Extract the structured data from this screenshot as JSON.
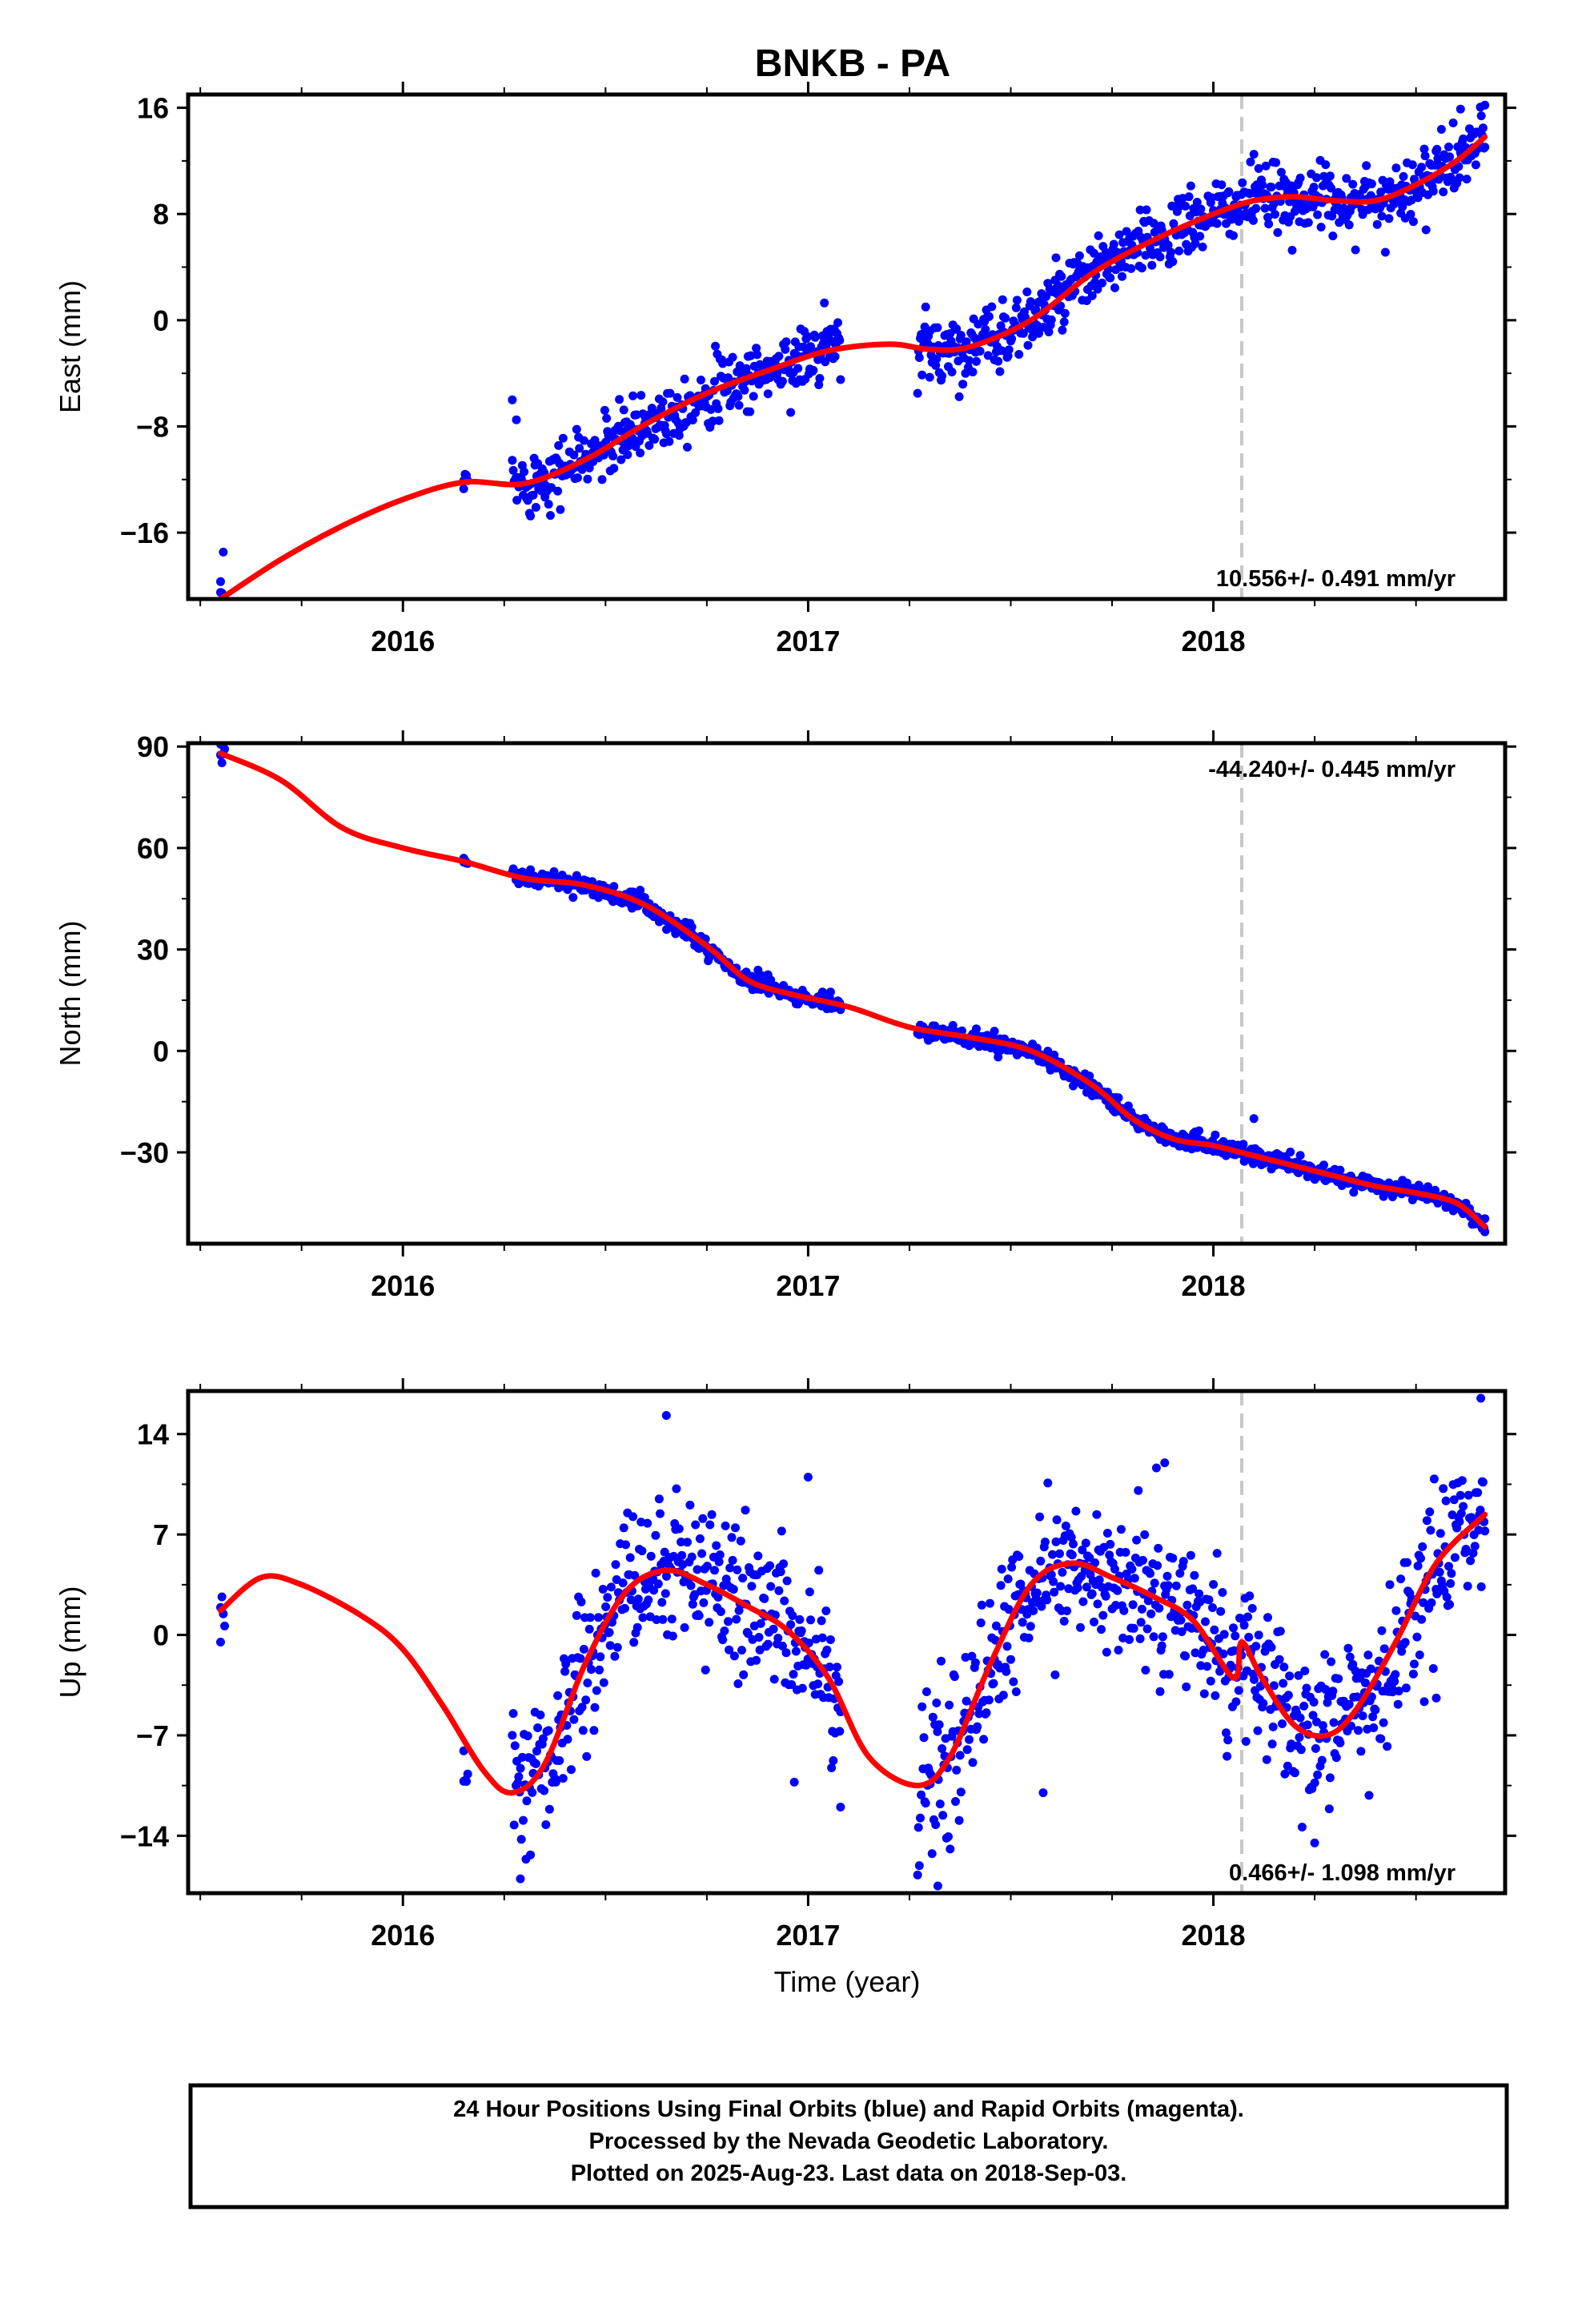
{
  "title": "BNKB - PA",
  "x_axis_label": "Time (year)",
  "footer": {
    "lines": [
      "24 Hour Positions Using Final Orbits (blue) and Rapid Orbits (magenta).",
      "Processed by the Nevada Geodetic Laboratory.",
      "Plotted on 2025-Aug-23. Last data on 2018-Sep-03."
    ]
  },
  "colors": {
    "data_points": "#0000ff",
    "fit_curve": "#ff0000",
    "marker_line": "#c8c8c8",
    "frame": "#000000"
  },
  "chart_data": [
    {
      "type": "scatter",
      "component": "east",
      "ylabel": "East (mm)",
      "rate_label": "10.556+/- 0.491 mm/yr",
      "xlim": [
        2015.47,
        2018.72
      ],
      "ylim": [
        -21,
        17
      ],
      "yticks": [
        -16,
        -8,
        0,
        8,
        16
      ],
      "xticks": [
        2016,
        2017,
        2018
      ],
      "vertical_marker": 2018.07,
      "fit_curve": {
        "x": [
          2015.55,
          2015.7,
          2015.85,
          2016.0,
          2016.15,
          2016.3,
          2016.45,
          2016.6,
          2016.75,
          2016.9,
          2017.05,
          2017.2,
          2017.3,
          2017.4,
          2017.55,
          2017.7,
          2017.85,
          2018.0,
          2018.1,
          2018.2,
          2018.3,
          2018.4,
          2018.5,
          2018.6,
          2018.67
        ],
        "y": [
          -21,
          -18,
          -15.5,
          -13.5,
          -12.2,
          -12.3,
          -10.5,
          -7.8,
          -5.5,
          -3.8,
          -2.3,
          -1.8,
          -2.2,
          -2.0,
          0,
          3.5,
          6,
          8,
          9,
          9.3,
          9,
          9,
          10.2,
          12,
          13.8
        ]
      },
      "points": {
        "count": 1000,
        "spread": 1.2,
        "segments": [
          [
            2015.55,
            2015.56
          ],
          [
            2016.15,
            2016.16
          ],
          [
            2016.27,
            2017.08
          ],
          [
            2017.27,
            2018.67
          ]
        ]
      },
      "outliers": [
        [
          2015.55,
          -20.5
        ],
        [
          2016.15,
          -12.7
        ],
        [
          2016.27,
          -6.0
        ],
        [
          2016.28,
          -7.5
        ],
        [
          2017.04,
          1.3
        ],
        [
          2017.29,
          1.0
        ],
        [
          2017.3,
          -4.3
        ],
        [
          2018.1,
          12.5
        ],
        [
          2018.61,
          15.9
        ],
        [
          2018.67,
          16.2
        ]
      ]
    },
    {
      "type": "scatter",
      "component": "north",
      "ylabel": "North (mm)",
      "rate_label": "-44.240+/- 0.445 mm/yr",
      "xlim": [
        2015.47,
        2018.72
      ],
      "ylim": [
        -57,
        91
      ],
      "yticks": [
        -30,
        0,
        30,
        60,
        90
      ],
      "xticks": [
        2016,
        2017,
        2018
      ],
      "vertical_marker": 2018.07,
      "fit_curve": {
        "x": [
          2015.55,
          2015.7,
          2015.85,
          2016.0,
          2016.15,
          2016.3,
          2016.45,
          2016.6,
          2016.75,
          2016.85,
          2016.95,
          2017.1,
          2017.25,
          2017.4,
          2017.55,
          2017.7,
          2017.8,
          2017.9,
          2018.0,
          2018.1,
          2018.2,
          2018.3,
          2018.4,
          2018.5,
          2018.6,
          2018.67
        ],
        "y": [
          88,
          80,
          66,
          60,
          56,
          51,
          49,
          43,
          31,
          21,
          17,
          13,
          7,
          4,
          0,
          -10,
          -20,
          -26,
          -28,
          -31,
          -34,
          -37,
          -40,
          -42,
          -45,
          -52
        ]
      },
      "points": {
        "count": 1000,
        "spread": 1.3,
        "segments": [
          [
            2015.55,
            2015.56
          ],
          [
            2016.15,
            2016.16
          ],
          [
            2016.27,
            2017.08
          ],
          [
            2017.27,
            2018.67
          ]
        ]
      },
      "outliers": [
        [
          2015.55,
          87.5
        ],
        [
          2016.15,
          55.8
        ],
        [
          2018.1,
          -20.0
        ],
        [
          2018.67,
          -53.5
        ]
      ]
    },
    {
      "type": "scatter",
      "component": "up",
      "ylabel": "Up (mm)",
      "rate_label": "0.466+/- 1.098 mm/yr",
      "xlim": [
        2015.47,
        2018.72
      ],
      "ylim": [
        -18,
        17
      ],
      "yticks": [
        -14,
        -7,
        0,
        7,
        14
      ],
      "xticks": [
        2016,
        2017,
        2018
      ],
      "vertical_marker": 2018.07,
      "fit_curve": {
        "x": [
          2015.55,
          2015.65,
          2015.75,
          2015.9,
          2016.0,
          2016.1,
          2016.2,
          2016.27,
          2016.35,
          2016.45,
          2016.55,
          2016.65,
          2016.75,
          2016.85,
          2016.95,
          2017.05,
          2017.15,
          2017.27,
          2017.35,
          2017.45,
          2017.55,
          2017.65,
          2017.75,
          2017.85,
          2017.95,
          2018.05,
          2018.07,
          2018.12,
          2018.2,
          2018.28,
          2018.35,
          2018.45,
          2018.55,
          2018.67
        ],
        "y": [
          1.7,
          4,
          3.5,
          1.3,
          -1,
          -5,
          -9.5,
          -11,
          -9,
          -2,
          3,
          4.5,
          3.5,
          2,
          0.3,
          -3,
          -8.5,
          -10.5,
          -8.5,
          -2,
          3.5,
          5,
          4,
          2.7,
          1,
          -3,
          -0.5,
          -3,
          -6.3,
          -7,
          -5.3,
          -0.5,
          5,
          8.4
        ]
      },
      "points": {
        "count": 1000,
        "spread": 2.6,
        "segments": [
          [
            2015.55,
            2015.56
          ],
          [
            2016.15,
            2016.16
          ],
          [
            2016.27,
            2017.08
          ],
          [
            2017.27,
            2018.67
          ]
        ]
      },
      "outliers": [
        [
          2015.55,
          -0.5
        ],
        [
          2016.15,
          -10.2
        ],
        [
          2016.29,
          -17
        ],
        [
          2016.65,
          15.3
        ],
        [
          2017.0,
          11
        ],
        [
          2017.08,
          -12
        ],
        [
          2017.32,
          -17.5
        ],
        [
          2017.58,
          -11
        ],
        [
          2017.88,
          12
        ],
        [
          2018.25,
          -14.5
        ],
        [
          2018.55,
          -4.4
        ],
        [
          2018.66,
          16.5
        ]
      ]
    }
  ]
}
